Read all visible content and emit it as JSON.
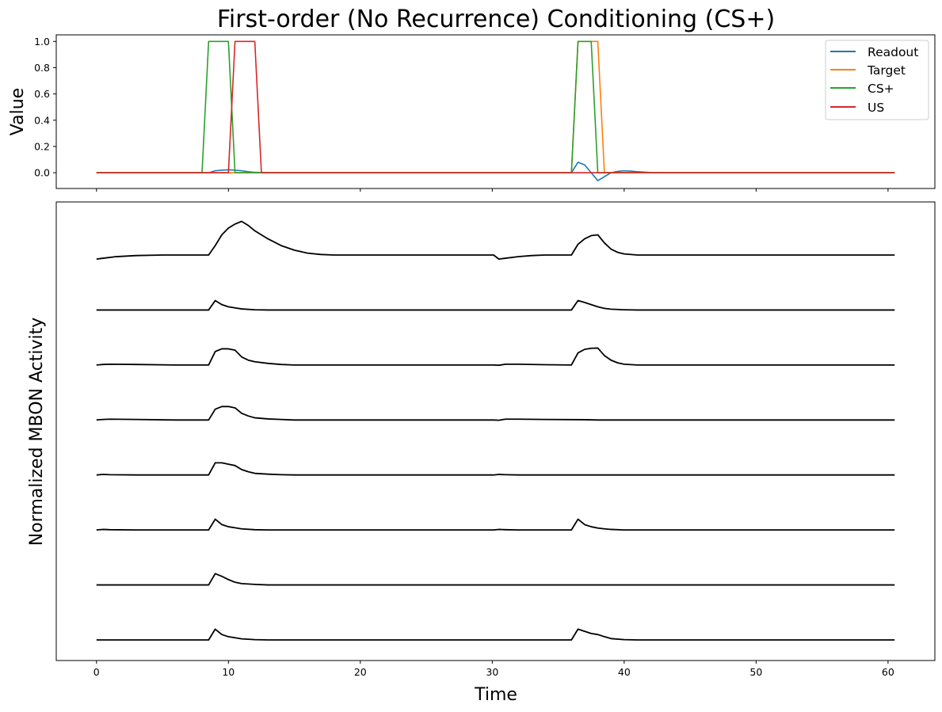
{
  "chart_data": [
    {
      "type": "line",
      "title": "First-order (No Recurrence) Conditioning (CS+)",
      "xlabel": "",
      "ylabel": "Value",
      "xlim": [
        -3.05,
        63.55
      ],
      "ylim": [
        -0.12,
        1.05
      ],
      "xticks": [
        0,
        10,
        20,
        30,
        40,
        50,
        60
      ],
      "yticks": [
        0.0,
        0.2,
        0.4,
        0.6,
        0.8,
        1.0
      ],
      "ytick_labels": [
        "0.0",
        "0.2",
        "0.4",
        "0.6",
        "0.8",
        "1.0"
      ],
      "legend_position": "top-right",
      "series": [
        {
          "name": "Readout",
          "color": "#1f77b4",
          "points": [
            [
              0,
              0
            ],
            [
              8.5,
              0
            ],
            [
              9,
              0.015
            ],
            [
              9.5,
              0.02
            ],
            [
              10,
              0.022
            ],
            [
              10.5,
              0.02
            ],
            [
              11,
              0.015
            ],
            [
              11.5,
              0.008
            ],
            [
              12,
              0.003
            ],
            [
              13,
              0
            ],
            [
              36,
              0
            ],
            [
              36.5,
              0.08
            ],
            [
              37,
              0.06
            ],
            [
              37.5,
              0.0
            ],
            [
              38,
              -0.06
            ],
            [
              38.5,
              -0.03
            ],
            [
              39,
              0.0
            ],
            [
              39.5,
              0.01
            ],
            [
              40,
              0.015
            ],
            [
              40.5,
              0.012
            ],
            [
              41,
              0.008
            ],
            [
              42,
              0.002
            ],
            [
              43,
              0
            ],
            [
              60.5,
              0
            ]
          ]
        },
        {
          "name": "Target",
          "color": "#ff7f0e",
          "points": [
            [
              0,
              0
            ],
            [
              36,
              0
            ],
            [
              36.5,
              1
            ],
            [
              38,
              1
            ],
            [
              38.5,
              0
            ],
            [
              60.5,
              0
            ]
          ]
        },
        {
          "name": "CS+",
          "color": "#2ca02c",
          "points": [
            [
              0,
              0
            ],
            [
              8,
              0
            ],
            [
              8.5,
              1
            ],
            [
              10,
              1
            ],
            [
              10.5,
              0
            ],
            [
              36,
              0
            ],
            [
              36,
              0
            ],
            [
              36.5,
              1
            ],
            [
              37.5,
              1
            ],
            [
              38,
              0
            ],
            [
              60.5,
              0
            ]
          ]
        },
        {
          "name": "US",
          "color": "#d62728",
          "points": [
            [
              0,
              0
            ],
            [
              10,
              0
            ],
            [
              10.5,
              1
            ],
            [
              12,
              1
            ],
            [
              12.5,
              0
            ],
            [
              60.5,
              0
            ]
          ]
        }
      ]
    },
    {
      "type": "line",
      "title": "",
      "xlabel": "Time",
      "ylabel": "Normalized MBON Activity",
      "xlim": [
        -3.05,
        63.55
      ],
      "xticks": [
        0,
        10,
        20,
        30,
        40,
        50,
        60
      ],
      "xtick_labels": [
        "0",
        "10",
        "20",
        "30",
        "40",
        "50",
        "60"
      ],
      "yticks": [],
      "color": "#000000",
      "note_offsets": "traces are vertically stacked; values are normalized activity above each trace baseline",
      "series": [
        {
          "points": [
            [
              0,
              -0.15
            ],
            [
              0.5,
              -0.12
            ],
            [
              1.5,
              -0.06
            ],
            [
              3,
              -0.02
            ],
            [
              5,
              0
            ],
            [
              8.5,
              0
            ],
            [
              9,
              0.35
            ],
            [
              9.5,
              0.75
            ],
            [
              10,
              1.0
            ],
            [
              10.5,
              1.15
            ],
            [
              11,
              1.25
            ],
            [
              11.5,
              1.1
            ],
            [
              12,
              0.9
            ],
            [
              13,
              0.6
            ],
            [
              14,
              0.35
            ],
            [
              15,
              0.18
            ],
            [
              16,
              0.07
            ],
            [
              17,
              0.02
            ],
            [
              18,
              0
            ],
            [
              30.1,
              0
            ],
            [
              30.5,
              -0.15
            ],
            [
              31,
              -0.12
            ],
            [
              32,
              -0.06
            ],
            [
              33,
              -0.02
            ],
            [
              34,
              0
            ],
            [
              36,
              0
            ],
            [
              36.5,
              0.4
            ],
            [
              37,
              0.6
            ],
            [
              37.5,
              0.72
            ],
            [
              38,
              0.75
            ],
            [
              38.5,
              0.45
            ],
            [
              39,
              0.22
            ],
            [
              39.5,
              0.1
            ],
            [
              40,
              0.04
            ],
            [
              41,
              0
            ],
            [
              60.5,
              0
            ]
          ]
        },
        {
          "points": [
            [
              0,
              0
            ],
            [
              8.5,
              0
            ],
            [
              9,
              0.35
            ],
            [
              9.5,
              0.2
            ],
            [
              10,
              0.12
            ],
            [
              10.5,
              0.08
            ],
            [
              11,
              0.04
            ],
            [
              12,
              0.01
            ],
            [
              13,
              0
            ],
            [
              36,
              0
            ],
            [
              36.5,
              0.35
            ],
            [
              37,
              0.28
            ],
            [
              37.5,
              0.2
            ],
            [
              38,
              0.12
            ],
            [
              38.5,
              0.06
            ],
            [
              39,
              0.03
            ],
            [
              40,
              0.01
            ],
            [
              41,
              0
            ],
            [
              60.5,
              0
            ]
          ]
        },
        {
          "points": [
            [
              0,
              0
            ],
            [
              0.5,
              0.02
            ],
            [
              1,
              0.03
            ],
            [
              3,
              0.02
            ],
            [
              6,
              0
            ],
            [
              8.5,
              0
            ],
            [
              9,
              0.5
            ],
            [
              9.5,
              0.6
            ],
            [
              10,
              0.6
            ],
            [
              10.5,
              0.55
            ],
            [
              11,
              0.3
            ],
            [
              11.5,
              0.18
            ],
            [
              12,
              0.12
            ],
            [
              13,
              0.06
            ],
            [
              14,
              0.02
            ],
            [
              15,
              0
            ],
            [
              30.1,
              0
            ],
            [
              30.5,
              -0.01
            ],
            [
              31,
              0.03
            ],
            [
              32,
              0.03
            ],
            [
              34,
              0.01
            ],
            [
              36,
              0
            ],
            [
              36.5,
              0.45
            ],
            [
              37,
              0.58
            ],
            [
              37.5,
              0.62
            ],
            [
              38,
              0.63
            ],
            [
              38.5,
              0.35
            ],
            [
              39,
              0.18
            ],
            [
              39.5,
              0.08
            ],
            [
              40,
              0.03
            ],
            [
              41,
              0
            ],
            [
              60.5,
              0
            ]
          ]
        },
        {
          "points": [
            [
              0,
              0
            ],
            [
              0.5,
              0.02
            ],
            [
              1,
              0.03
            ],
            [
              3,
              0.02
            ],
            [
              6,
              0
            ],
            [
              8.5,
              0
            ],
            [
              9,
              0.4
            ],
            [
              9.5,
              0.5
            ],
            [
              10,
              0.5
            ],
            [
              10.5,
              0.45
            ],
            [
              11,
              0.25
            ],
            [
              11.5,
              0.15
            ],
            [
              12,
              0.08
            ],
            [
              13,
              0.04
            ],
            [
              14,
              0.02
            ],
            [
              15,
              0
            ],
            [
              30.1,
              0
            ],
            [
              30.5,
              -0.01
            ],
            [
              31,
              0.03
            ],
            [
              32,
              0.03
            ],
            [
              34,
              0.02
            ],
            [
              37,
              0.01
            ],
            [
              38,
              0
            ],
            [
              60.5,
              0
            ]
          ]
        },
        {
          "points": [
            [
              0,
              0
            ],
            [
              0.5,
              0.02
            ],
            [
              1,
              0.01
            ],
            [
              3,
              0
            ],
            [
              8.5,
              0
            ],
            [
              9,
              0.45
            ],
            [
              9.5,
              0.45
            ],
            [
              10,
              0.4
            ],
            [
              10.5,
              0.35
            ],
            [
              11,
              0.2
            ],
            [
              11.5,
              0.12
            ],
            [
              12,
              0.06
            ],
            [
              13,
              0.03
            ],
            [
              14,
              0.01
            ],
            [
              15,
              0
            ],
            [
              30.1,
              0
            ],
            [
              30.5,
              0.02
            ],
            [
              31,
              0.01
            ],
            [
              32,
              0
            ],
            [
              60.5,
              0
            ]
          ]
        },
        {
          "points": [
            [
              0,
              0
            ],
            [
              0.5,
              0.02
            ],
            [
              1,
              0.01
            ],
            [
              3,
              0
            ],
            [
              8.5,
              0
            ],
            [
              9,
              0.4
            ],
            [
              9.5,
              0.2
            ],
            [
              10,
              0.12
            ],
            [
              10.5,
              0.08
            ],
            [
              11,
              0.04
            ],
            [
              12,
              0.01
            ],
            [
              13,
              0
            ],
            [
              30.1,
              0
            ],
            [
              30.5,
              0.02
            ],
            [
              31,
              0.01
            ],
            [
              32,
              0
            ],
            [
              36,
              0
            ],
            [
              36.5,
              0.4
            ],
            [
              37,
              0.2
            ],
            [
              37.5,
              0.12
            ],
            [
              38,
              0.07
            ],
            [
              38.5,
              0.04
            ],
            [
              39,
              0.02
            ],
            [
              40,
              0
            ],
            [
              60.5,
              0
            ]
          ]
        },
        {
          "points": [
            [
              0,
              0
            ],
            [
              8.5,
              0
            ],
            [
              9,
              0.42
            ],
            [
              9.5,
              0.32
            ],
            [
              10,
              0.2
            ],
            [
              10.5,
              0.1
            ],
            [
              11,
              0.05
            ],
            [
              12,
              0.02
            ],
            [
              13,
              0
            ],
            [
              60.5,
              0
            ]
          ]
        },
        {
          "points": [
            [
              0,
              0
            ],
            [
              8.5,
              0
            ],
            [
              9,
              0.4
            ],
            [
              9.5,
              0.2
            ],
            [
              10,
              0.12
            ],
            [
              10.5,
              0.08
            ],
            [
              11,
              0.04
            ],
            [
              12,
              0.01
            ],
            [
              13,
              0
            ],
            [
              36,
              0
            ],
            [
              36.5,
              0.4
            ],
            [
              37,
              0.32
            ],
            [
              37.5,
              0.24
            ],
            [
              38,
              0.2
            ],
            [
              38.5,
              0.12
            ],
            [
              39,
              0.05
            ],
            [
              40,
              0.01
            ],
            [
              41,
              0
            ],
            [
              60.5,
              0
            ]
          ]
        }
      ]
    }
  ]
}
